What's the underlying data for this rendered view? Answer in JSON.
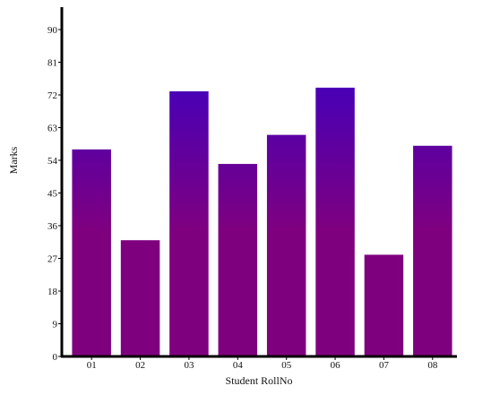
{
  "chart_data": {
    "type": "bar",
    "categories": [
      "01",
      "02",
      "03",
      "04",
      "05",
      "06",
      "07",
      "08"
    ],
    "values": [
      57,
      32,
      73,
      53,
      61,
      74,
      28,
      58
    ],
    "title": "",
    "xlabel": "Student RollNo",
    "ylabel": "Marks",
    "ylim": [
      0,
      90
    ],
    "yticks": [
      0,
      9,
      18,
      27,
      36,
      45,
      54,
      63,
      72,
      81,
      90
    ],
    "grid": false,
    "legend": "none",
    "bar_gradient": {
      "top": "#3300cc",
      "bottom": "#7f007f"
    },
    "axis_color": "#000000"
  }
}
